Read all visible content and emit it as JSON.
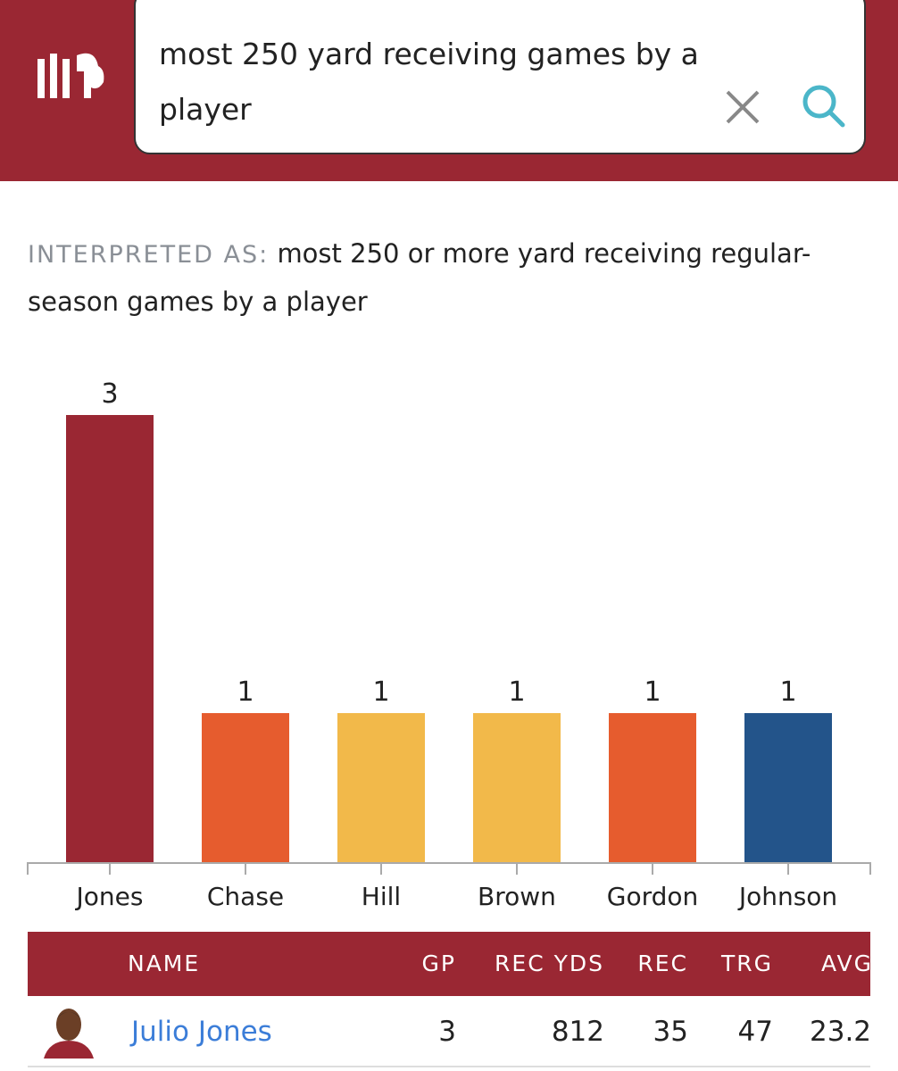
{
  "search": {
    "query": "most 250 yard receiving games by a player"
  },
  "interpreted": {
    "label": "INTERPRETED AS:",
    "text": "most 250 or more yard receiving regular-season games by a player"
  },
  "chart_data": {
    "type": "bar",
    "categories": [
      "Jones",
      "Chase",
      "Hill",
      "Brown",
      "Gordon",
      "Johnson"
    ],
    "values": [
      3,
      1,
      1,
      1,
      1,
      1
    ],
    "colors": [
      "#9a2733",
      "#e65c2e",
      "#f2b94a",
      "#f2b94a",
      "#e65c2e",
      "#23548a"
    ]
  },
  "table": {
    "columns": [
      "NAME",
      "GP",
      "REC YDS",
      "REC",
      "TRG",
      "AVG"
    ],
    "rows": [
      [
        "Julio Jones",
        "3",
        "812",
        "35",
        "47",
        "23.2"
      ]
    ]
  }
}
